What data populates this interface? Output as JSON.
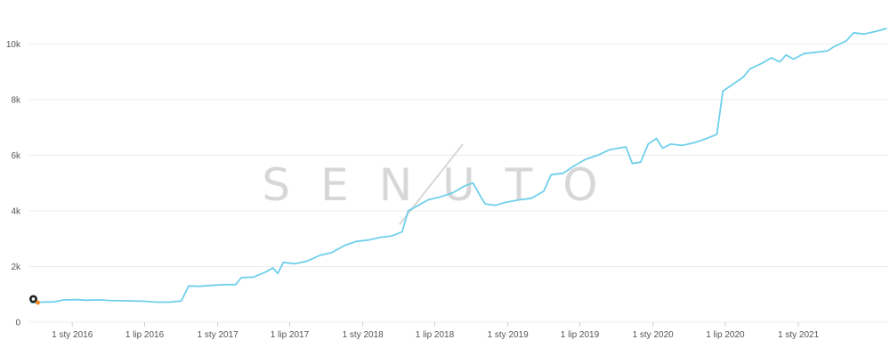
{
  "chart_data": {
    "type": "line",
    "title": "",
    "xlabel": "",
    "ylabel": "",
    "grid": "horizontal",
    "legend": "none",
    "xlim": [
      "2015-09-15",
      "2021-08-15"
    ],
    "ylim": [
      0,
      11000
    ],
    "y_ticks": [
      {
        "value": 0,
        "label": "0"
      },
      {
        "value": 2000,
        "label": "2k"
      },
      {
        "value": 4000,
        "label": "4k"
      },
      {
        "value": 6000,
        "label": "6k"
      },
      {
        "value": 8000,
        "label": "8k"
      },
      {
        "value": 10000,
        "label": "10k"
      }
    ],
    "x_ticks": [
      {
        "value": "2016-01-01",
        "label": "1 sty 2016"
      },
      {
        "value": "2016-07-01",
        "label": "1 lip 2016"
      },
      {
        "value": "2017-01-01",
        "label": "1 sty 2017"
      },
      {
        "value": "2017-07-01",
        "label": "1 lip 2017"
      },
      {
        "value": "2018-01-01",
        "label": "1 sty 2018"
      },
      {
        "value": "2018-07-01",
        "label": "1 lip 2018"
      },
      {
        "value": "2019-01-01",
        "label": "1 sty 2019"
      },
      {
        "value": "2019-07-01",
        "label": "1 lip 2019"
      },
      {
        "value": "2020-01-01",
        "label": "1 sty 2020"
      },
      {
        "value": "2020-07-01",
        "label": "1 lip 2020"
      },
      {
        "value": "2021-01-01",
        "label": "1 sty 2021"
      }
    ],
    "series": [
      {
        "color": "#6fd0ea",
        "points": [
          [
            "2015-09-20",
            700
          ],
          [
            "2015-10-15",
            720
          ],
          [
            "2015-11-15",
            730
          ],
          [
            "2015-12-10",
            800
          ],
          [
            "2016-01-15",
            810
          ],
          [
            "2016-02-01",
            790
          ],
          [
            "2016-03-15",
            800
          ],
          [
            "2016-04-01",
            780
          ],
          [
            "2016-05-01",
            770
          ],
          [
            "2016-06-01",
            760
          ],
          [
            "2016-07-01",
            750
          ],
          [
            "2016-08-01",
            720
          ],
          [
            "2016-09-01",
            720
          ],
          [
            "2016-10-01",
            760
          ],
          [
            "2016-10-20",
            1300
          ],
          [
            "2016-11-15",
            1290
          ],
          [
            "2016-12-15",
            1320
          ],
          [
            "2017-01-15",
            1350
          ],
          [
            "2017-02-15",
            1350
          ],
          [
            "2017-03-01",
            1600
          ],
          [
            "2017-04-01",
            1620
          ],
          [
            "2017-05-01",
            1800
          ],
          [
            "2017-05-20",
            1950
          ],
          [
            "2017-06-01",
            1750
          ],
          [
            "2017-06-15",
            2150
          ],
          [
            "2017-07-15",
            2100
          ],
          [
            "2017-08-15",
            2200
          ],
          [
            "2017-09-15",
            2400
          ],
          [
            "2017-10-15",
            2500
          ],
          [
            "2017-11-15",
            2750
          ],
          [
            "2017-12-15",
            2900
          ],
          [
            "2018-01-15",
            2950
          ],
          [
            "2018-02-15",
            3050
          ],
          [
            "2018-03-15",
            3100
          ],
          [
            "2018-04-10",
            3250
          ],
          [
            "2018-04-25",
            4000
          ],
          [
            "2018-05-15",
            4150
          ],
          [
            "2018-06-15",
            4400
          ],
          [
            "2018-07-15",
            4500
          ],
          [
            "2018-08-15",
            4650
          ],
          [
            "2018-09-15",
            4900
          ],
          [
            "2018-10-05",
            5000
          ],
          [
            "2018-10-25",
            4500
          ],
          [
            "2018-11-05",
            4250
          ],
          [
            "2018-12-01",
            4200
          ],
          [
            "2018-12-25",
            4300
          ],
          [
            "2019-02-01",
            4400
          ],
          [
            "2019-03-01",
            4450
          ],
          [
            "2019-04-01",
            4700
          ],
          [
            "2019-04-20",
            5300
          ],
          [
            "2019-05-20",
            5350
          ],
          [
            "2019-06-15",
            5600
          ],
          [
            "2019-07-15",
            5850
          ],
          [
            "2019-08-15",
            6000
          ],
          [
            "2019-09-15",
            6200
          ],
          [
            "2019-10-25",
            6300
          ],
          [
            "2019-11-10",
            5700
          ],
          [
            "2019-12-01",
            5750
          ],
          [
            "2019-12-20",
            6400
          ],
          [
            "2020-01-10",
            6600
          ],
          [
            "2020-01-25",
            6250
          ],
          [
            "2020-02-15",
            6400
          ],
          [
            "2020-03-15",
            6350
          ],
          [
            "2020-04-15",
            6450
          ],
          [
            "2020-05-15",
            6600
          ],
          [
            "2020-06-10",
            6750
          ],
          [
            "2020-06-25",
            8300
          ],
          [
            "2020-07-15",
            8500
          ],
          [
            "2020-08-15",
            8800
          ],
          [
            "2020-09-01",
            9100
          ],
          [
            "2020-10-01",
            9300
          ],
          [
            "2020-10-25",
            9500
          ],
          [
            "2020-11-15",
            9350
          ],
          [
            "2020-12-01",
            9600
          ],
          [
            "2020-12-20",
            9450
          ],
          [
            "2021-01-15",
            9650
          ],
          [
            "2021-02-15",
            9700
          ],
          [
            "2021-03-15",
            9750
          ],
          [
            "2021-04-01",
            9900
          ],
          [
            "2021-05-01",
            10100
          ],
          [
            "2021-05-20",
            10400
          ],
          [
            "2021-06-15",
            10350
          ],
          [
            "2021-07-15",
            10450
          ],
          [
            "2021-08-10",
            10550
          ]
        ]
      }
    ],
    "event_markers": [
      {
        "date": "2015-09-25",
        "value": 800,
        "icon": "google-update-icon"
      }
    ],
    "watermark": "SENUTO"
  }
}
